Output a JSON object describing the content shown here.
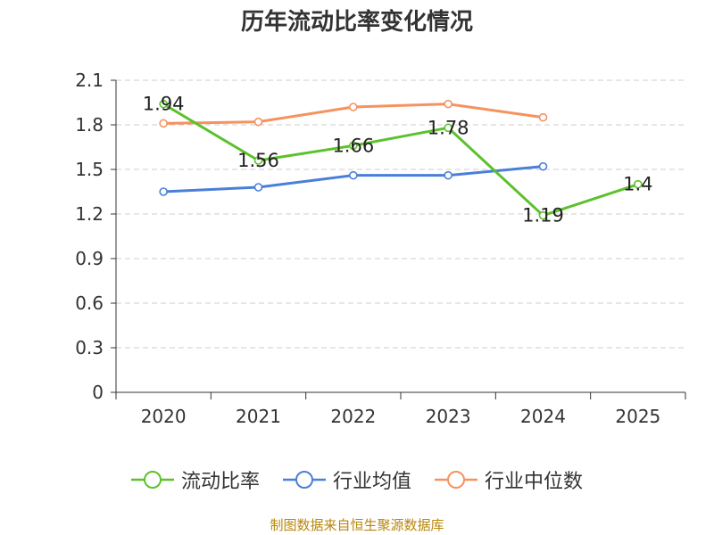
{
  "chart_data": {
    "type": "line",
    "title": "历年流动比率变化情况",
    "categories": [
      "2020",
      "2021",
      "2022",
      "2023",
      "2024",
      "2025"
    ],
    "ylim": [
      0,
      2.1
    ],
    "yticks": [
      0,
      0.3,
      0.6,
      0.9,
      1.2,
      1.5,
      1.8,
      2.1
    ],
    "ytick_labels": [
      "0",
      "0.3",
      "0.6",
      "0.9",
      "1.2",
      "1.5",
      "1.8",
      "2.1"
    ],
    "grid": true,
    "legend_position": "bottom",
    "series": [
      {
        "name": "流动比率",
        "color": "#5cc12c",
        "values": [
          1.94,
          1.56,
          1.66,
          1.78,
          1.19,
          1.4
        ],
        "labels": [
          "1.94",
          "1.56",
          "1.66",
          "1.78",
          "1.19",
          "1.4"
        ]
      },
      {
        "name": "行业均值",
        "color": "#4a7fd9",
        "values": [
          1.35,
          1.38,
          1.46,
          1.46,
          1.52,
          null
        ]
      },
      {
        "name": "行业中位数",
        "color": "#f5925e",
        "values": [
          1.81,
          1.82,
          1.92,
          1.94,
          1.85,
          null
        ]
      }
    ]
  },
  "footer": "制图数据来自恒生聚源数据库"
}
